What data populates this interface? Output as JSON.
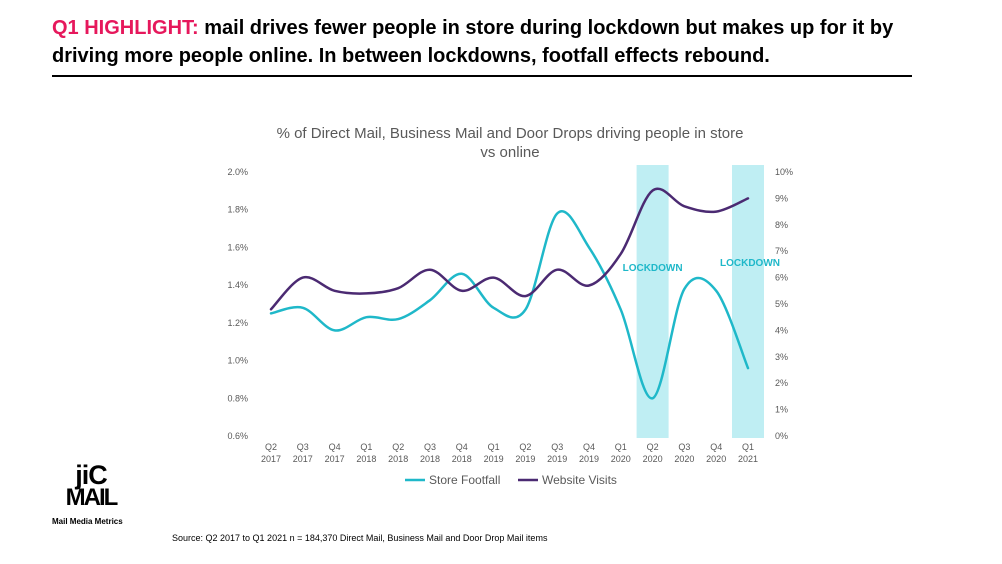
{
  "headline": {
    "highlight": "Q1 HIGHLIGHT:",
    "text": " mail drives fewer people in store during lockdown  but makes up for it by driving more people online. In between lockdowns, footfall effects rebound."
  },
  "logo": {
    "line1": "jiC",
    "line2": "MAIL",
    "tagline": "Mail Media Metrics"
  },
  "source": "Source: Q2 2017 to Q1 2021 n = 184,370 Direct Mail, Business Mail and Door Drop Mail items",
  "colors": {
    "highlight": "#e6185c",
    "store": "#1fb8c9",
    "web": "#4b2a72",
    "lockdown": "#bfeef3",
    "lockdown_text": "#1fb8c9",
    "axis_text": "#595959"
  },
  "chart_data": {
    "type": "line",
    "title": "% of Direct Mail, Business Mail and Door Drops driving people in store vs online",
    "title_lines": [
      "% of Direct Mail, Business Mail and Door Drops driving people in store",
      "vs online"
    ],
    "categories": [
      "Q2 2017",
      "Q3 2017",
      "Q4 2017",
      "Q1 2018",
      "Q2 2018",
      "Q3 2018",
      "Q4 2018",
      "Q1 2019",
      "Q2 2019",
      "Q3 2019",
      "Q4 2019",
      "Q1 2020",
      "Q2 2020",
      "Q3 2020",
      "Q4 2020",
      "Q1 2021"
    ],
    "category_labels": [
      [
        "Q2",
        "2017"
      ],
      [
        "Q3",
        "2017"
      ],
      [
        "Q4",
        "2017"
      ],
      [
        "Q1",
        "2018"
      ],
      [
        "Q2",
        "2018"
      ],
      [
        "Q3",
        "2018"
      ],
      [
        "Q4",
        "2018"
      ],
      [
        "Q1",
        "2019"
      ],
      [
        "Q2",
        "2019"
      ],
      [
        "Q3",
        "2019"
      ],
      [
        "Q4",
        "2019"
      ],
      [
        "Q1",
        "2020"
      ],
      [
        "Q2",
        "2020"
      ],
      [
        "Q3",
        "2020"
      ],
      [
        "Q4",
        "2020"
      ],
      [
        "Q1",
        "2021"
      ]
    ],
    "y_left": {
      "min": 0.6,
      "max": 2.0,
      "ticks": [
        "0.6%",
        "0.8%",
        "1.0%",
        "1.2%",
        "1.4%",
        "1.6%",
        "1.8%",
        "2.0%"
      ]
    },
    "y_right": {
      "min": 0,
      "max": 10,
      "ticks": [
        "0%",
        "1%",
        "2%",
        "3%",
        "4%",
        "5%",
        "6%",
        "7%",
        "8%",
        "9%",
        "10%"
      ]
    },
    "series": [
      {
        "name": "Store Footfall",
        "axis": "left",
        "color": "#1fb8c9",
        "values": [
          1.25,
          1.28,
          1.16,
          1.23,
          1.22,
          1.32,
          1.46,
          1.28,
          1.27,
          1.78,
          1.6,
          1.27,
          0.8,
          1.38,
          1.37,
          0.96
        ]
      },
      {
        "name": "Website Visits",
        "axis": "right",
        "color": "#4b2a72",
        "values": [
          4.8,
          6.0,
          5.5,
          5.4,
          5.6,
          6.3,
          5.5,
          6.0,
          5.3,
          6.3,
          5.7,
          6.9,
          9.3,
          8.7,
          8.5,
          9.0
        ]
      }
    ],
    "lockdown_bands": [
      {
        "category": "Q2 2020",
        "label": "LOCKDOWN"
      },
      {
        "category": "Q1 2021",
        "label": "LOCKDOWN"
      }
    ],
    "legend": "bottom",
    "grid": false
  }
}
